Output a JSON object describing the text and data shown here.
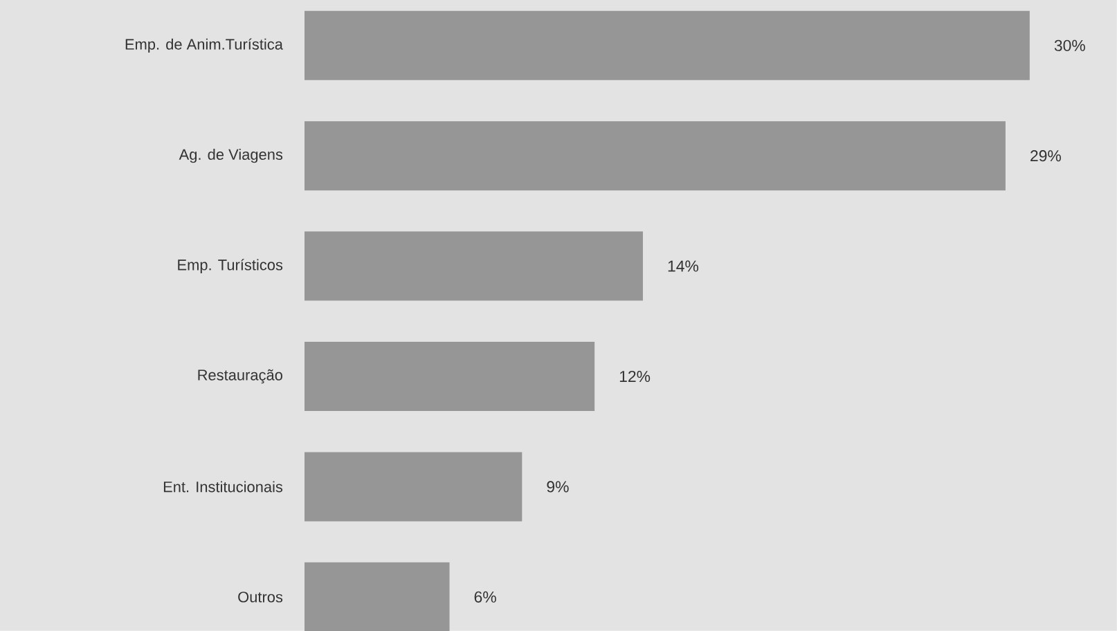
{
  "chart_data": {
    "type": "bar",
    "orientation": "horizontal",
    "categories": [
      "Emp. de Anim.Turística",
      "Ag. de Viagens",
      "Emp. Turísticos",
      "Restauração",
      "Ent. Institucionais",
      "Outros"
    ],
    "values": [
      30,
      29,
      14,
      12,
      9,
      6
    ],
    "value_labels": [
      "30%",
      "29%",
      "14%",
      "12%",
      "9%",
      "6%"
    ],
    "color": "#969696"
  }
}
